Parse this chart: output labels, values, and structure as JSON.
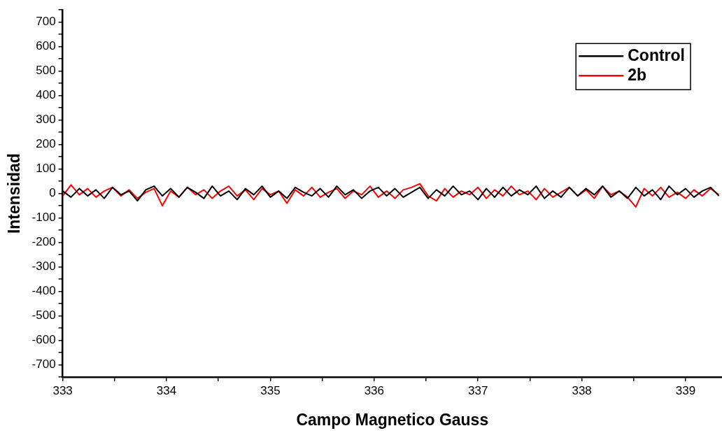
{
  "chart_data": {
    "type": "line",
    "xlabel": "Campo Magnetico Gauss",
    "ylabel": "Intensidad",
    "x": [
      333.0,
      333.08,
      333.16,
      333.24,
      333.32,
      333.4,
      333.48,
      333.56,
      333.64,
      333.72,
      333.8,
      333.88,
      333.96,
      334.04,
      334.12,
      334.2,
      334.28,
      334.36,
      334.44,
      334.52,
      334.6,
      334.68,
      334.76,
      334.84,
      334.92,
      335.0,
      335.08,
      335.16,
      335.24,
      335.32,
      335.4,
      335.48,
      335.56,
      335.64,
      335.72,
      335.8,
      335.88,
      335.96,
      336.04,
      336.12,
      336.2,
      336.28,
      336.36,
      336.44,
      336.52,
      336.6,
      336.68,
      336.76,
      336.84,
      336.92,
      337.0,
      337.08,
      337.16,
      337.24,
      337.32,
      337.4,
      337.48,
      337.56,
      337.64,
      337.72,
      337.8,
      337.88,
      337.96,
      338.04,
      338.12,
      338.2,
      338.28,
      338.36,
      338.44,
      338.52,
      338.6,
      338.68,
      338.76,
      338.84,
      338.92,
      339.0,
      339.08,
      339.16,
      339.24,
      339.32
    ],
    "series": [
      {
        "name": "Control",
        "color": "#000000",
        "values": [
          10,
          -15,
          20,
          -10,
          15,
          -20,
          25,
          -5,
          10,
          -30,
          15,
          30,
          -10,
          20,
          -15,
          25,
          5,
          -20,
          30,
          -10,
          10,
          -25,
          20,
          -5,
          30,
          -15,
          10,
          -20,
          25,
          5,
          -10,
          20,
          -15,
          30,
          -5,
          15,
          -20,
          10,
          25,
          -10,
          20,
          -15,
          5,
          25,
          -20,
          15,
          -10,
          30,
          -5,
          10,
          -25,
          20,
          -15,
          25,
          -10,
          15,
          -5,
          30,
          -20,
          10,
          -15,
          25,
          -10,
          20,
          -5,
          30,
          -15,
          10,
          -20,
          25,
          -10,
          15,
          -25,
          30,
          -5,
          20,
          -15,
          10,
          25,
          -10
        ]
      },
      {
        "name": "2b",
        "color": "#ff0000",
        "values": [
          -10,
          35,
          -5,
          20,
          -15,
          10,
          25,
          -10,
          15,
          -20,
          5,
          20,
          -50,
          10,
          -15,
          25,
          -5,
          15,
          -20,
          10,
          30,
          -10,
          15,
          -25,
          20,
          -5,
          10,
          -40,
          15,
          -10,
          25,
          -15,
          5,
          20,
          -20,
          10,
          -5,
          30,
          -15,
          10,
          -20,
          15,
          25,
          40,
          -10,
          -30,
          20,
          -15,
          10,
          -5,
          25,
          -20,
          15,
          -10,
          30,
          -5,
          10,
          -25,
          20,
          -15,
          5,
          25,
          -10,
          15,
          -20,
          30,
          -5,
          10,
          -15,
          -55,
          20,
          -10,
          25,
          -15,
          5,
          -20,
          15,
          -10,
          20,
          -5
        ]
      }
    ],
    "xlim": [
      333,
      339.35
    ],
    "xticks": [
      333,
      334,
      335,
      336,
      337,
      338,
      339
    ],
    "ylim": [
      -750,
      750
    ],
    "yticks": [
      -700,
      -600,
      -500,
      -400,
      -300,
      -200,
      -100,
      0,
      100,
      200,
      300,
      400,
      500,
      600,
      700
    ],
    "grid": false,
    "legend": "top right",
    "marker": "none",
    "line_style": "solid"
  }
}
